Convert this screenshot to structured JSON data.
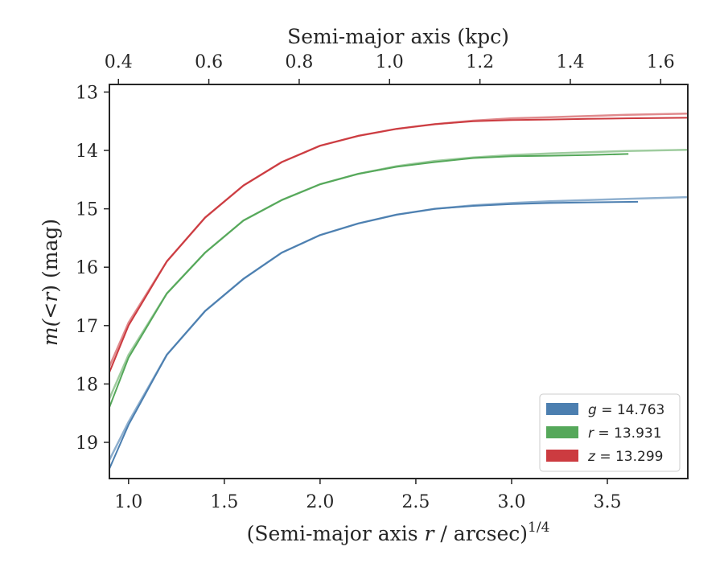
{
  "chart_data": {
    "type": "line",
    "xlabel_prefix": "(Semi-major axis ",
    "xlabel_var": "r",
    "xlabel_suffix": " / arcsec)",
    "xlabel_exp": "1/4",
    "ylabel_prefix": "m(<",
    "ylabel_var": "r",
    "ylabel_suffix": ") (mag)",
    "top_xlabel": "Semi-major axis (kpc)",
    "xlim": [
      0.9,
      3.92
    ],
    "ylim": [
      19.62,
      12.87
    ],
    "top_xlim": [
      0.38,
      1.66
    ],
    "y_inverted": true,
    "x_ticks": [
      1.0,
      1.5,
      2.0,
      2.5,
      3.0,
      3.5
    ],
    "x_tick_labels": [
      "1.0",
      "1.5",
      "2.0",
      "2.5",
      "3.0",
      "3.5"
    ],
    "y_ticks": [
      13,
      14,
      15,
      16,
      17,
      18,
      19
    ],
    "y_tick_labels": [
      "13",
      "14",
      "15",
      "16",
      "17",
      "18",
      "19"
    ],
    "top_x_ticks": [
      0.4,
      0.6,
      0.8,
      1.0,
      1.2,
      1.4,
      1.6
    ],
    "top_x_tick_labels": [
      "0.4",
      "0.6",
      "0.8",
      "1.0",
      "1.2",
      "1.4",
      "1.6"
    ],
    "grid": false,
    "legend_position": "lower-right",
    "series": [
      {
        "name": "g = 14.763",
        "name_var": "g",
        "name_value": "= 14.763",
        "color": "#4c7fb0",
        "model_color": "#8fb0cf",
        "x": [
          0.9,
          1.0,
          1.2,
          1.4,
          1.6,
          1.8,
          2.0,
          2.2,
          2.4,
          2.6,
          2.8,
          3.0,
          3.2,
          3.4,
          3.66
        ],
        "y": [
          19.45,
          18.7,
          17.5,
          16.75,
          16.2,
          15.75,
          15.45,
          15.25,
          15.1,
          15.0,
          14.95,
          14.92,
          14.9,
          14.89,
          14.88
        ],
        "model_x": [
          0.9,
          1.0,
          1.2,
          1.4,
          1.6,
          1.8,
          2.0,
          2.2,
          2.4,
          2.6,
          2.8,
          3.0,
          3.2,
          3.4,
          3.6,
          3.92
        ],
        "model_y": [
          19.3,
          18.65,
          17.5,
          16.75,
          16.2,
          15.75,
          15.45,
          15.25,
          15.1,
          15.0,
          14.94,
          14.9,
          14.87,
          14.85,
          14.83,
          14.8
        ]
      },
      {
        "name": "r = 13.931",
        "name_var": "r",
        "name_value": "= 13.931",
        "color": "#55a85a",
        "model_color": "#9fcc9f",
        "x": [
          0.9,
          1.0,
          1.2,
          1.4,
          1.6,
          1.8,
          2.0,
          2.2,
          2.4,
          2.6,
          2.8,
          3.0,
          3.2,
          3.4,
          3.61
        ],
        "y": [
          18.4,
          17.55,
          16.45,
          15.75,
          15.2,
          14.85,
          14.58,
          14.4,
          14.28,
          14.2,
          14.13,
          14.1,
          14.09,
          14.08,
          14.06
        ],
        "model_x": [
          0.9,
          1.0,
          1.2,
          1.4,
          1.6,
          1.8,
          2.0,
          2.2,
          2.4,
          2.6,
          2.8,
          3.0,
          3.2,
          3.4,
          3.6,
          3.92
        ],
        "model_y": [
          18.25,
          17.5,
          16.45,
          15.75,
          15.2,
          14.85,
          14.58,
          14.4,
          14.27,
          14.18,
          14.12,
          14.08,
          14.05,
          14.03,
          14.01,
          13.99
        ]
      },
      {
        "name": "z = 13.299",
        "name_var": "z",
        "name_value": "= 13.299",
        "color": "#cc3b40",
        "model_color": "#e08a8d",
        "x": [
          0.9,
          1.0,
          1.2,
          1.4,
          1.6,
          1.8,
          2.0,
          2.2,
          2.4,
          2.6,
          2.8,
          3.0,
          3.2,
          3.4,
          3.6,
          3.92
        ],
        "y": [
          17.8,
          17.0,
          15.9,
          15.15,
          14.6,
          14.2,
          13.92,
          13.75,
          13.63,
          13.55,
          13.5,
          13.48,
          13.47,
          13.46,
          13.45,
          13.44
        ],
        "model_x": [
          0.9,
          1.0,
          1.2,
          1.4,
          1.6,
          1.8,
          2.0,
          2.2,
          2.4,
          2.6,
          2.8,
          3.0,
          3.2,
          3.4,
          3.6,
          3.92
        ],
        "model_y": [
          17.7,
          16.95,
          15.9,
          15.15,
          14.6,
          14.2,
          13.92,
          13.75,
          13.63,
          13.55,
          13.49,
          13.45,
          13.43,
          13.41,
          13.39,
          13.37
        ]
      }
    ]
  }
}
